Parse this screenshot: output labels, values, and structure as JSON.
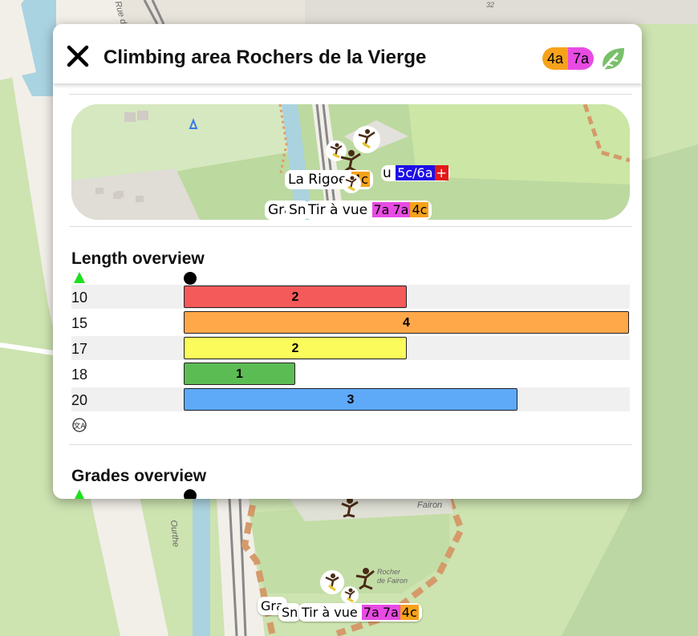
{
  "map": {
    "street_labels": [
      "Rue du",
      "Ourthe",
      "Fairon",
      "Rocher de Fairon"
    ],
    "house_number": "32",
    "bottom_labels": {
      "gra": "Gra",
      "sn": "Sn",
      "tir": "Tir à vue",
      "grades": [
        "7a",
        "7a",
        "4c"
      ]
    }
  },
  "popup": {
    "title": "Climbing area Rochers de la Vierge",
    "header_grades": [
      {
        "label": "4a",
        "color": "#f7a21b"
      },
      {
        "label": "7a",
        "color": "#e84be3"
      }
    ],
    "close_icon": "close-icon",
    "leaf_icon": "climbing-leaf-icon",
    "minimap": {
      "label_rigo": "La Rigo",
      "label_e": "e",
      "grade_4c": "4c",
      "label_u": "u",
      "grade_5c6a": "5c/6a",
      "label_gra": "Gra",
      "label_sn": "Sn",
      "label_tir": "Tir à vue",
      "tir_grades": [
        "7a",
        "7a",
        "4c"
      ]
    },
    "length_overview": {
      "heading": "Length overview",
      "rows": [
        {
          "length": "10",
          "count": 2,
          "count_label": "2",
          "color": "#f55a5a"
        },
        {
          "length": "15",
          "count": 4,
          "count_label": "4",
          "color": "#ffa84a"
        },
        {
          "length": "17",
          "count": 2,
          "count_label": "2",
          "color": "#fbfb5c"
        },
        {
          "length": "18",
          "count": 1,
          "count_label": "1",
          "color": "#5cbc54"
        },
        {
          "length": "20",
          "count": 3,
          "count_label": "3",
          "color": "#5ea9f8"
        }
      ],
      "max_count": 4
    },
    "grades_overview": {
      "heading": "Grades overview"
    }
  }
}
